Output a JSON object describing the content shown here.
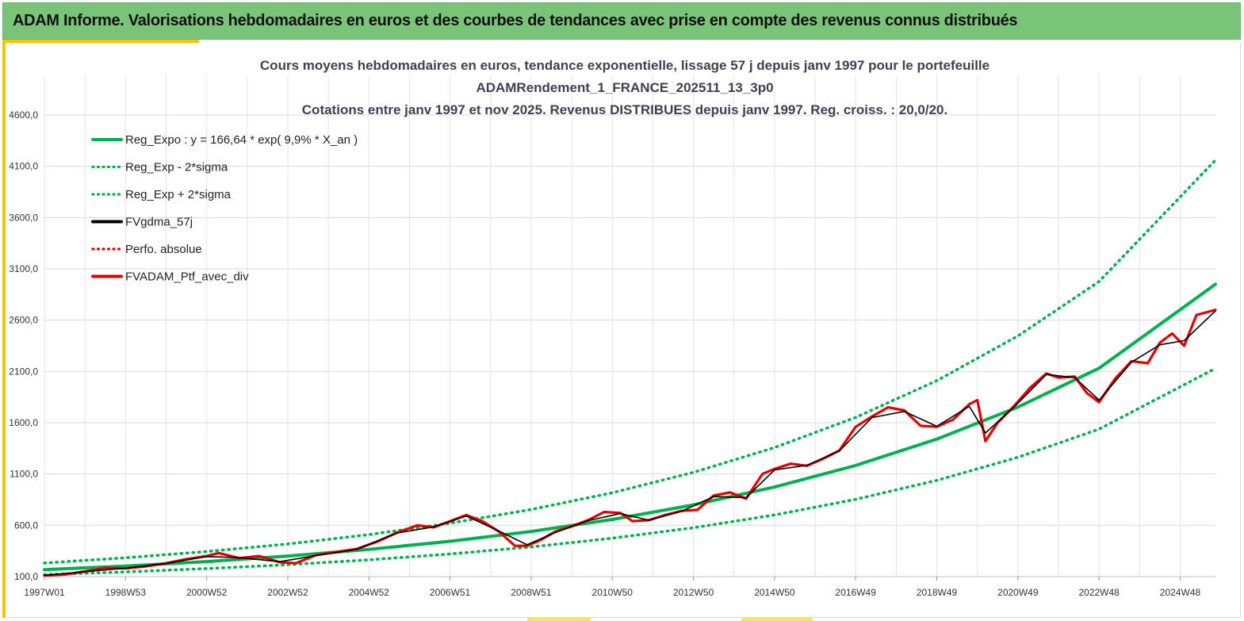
{
  "header": {
    "title": "ADAM Informe. Valorisations hebdomadaires en euros et des courbes de tendances avec prise en compte des revenus connus distribués"
  },
  "colors": {
    "banner": "#7ac47a",
    "accent": "#ffc000",
    "trend": "#00b050",
    "smoothed": "#000000",
    "portfolio": "#e00000"
  },
  "chart_data": {
    "type": "line",
    "title_lines": [
      "Cours moyens hebdomadaires  en euros, tendance exponentielle, lissage 57 j depuis janv 1997 pour le portefeuille",
      "ADAMRendement_1_FRANCE_202511_13_3p0",
      "Cotations  entre janv 1997 et nov 2025. Revenus DISTRIBUES depuis janv 1997. Reg. croiss. : 20,0/20."
    ],
    "x_tick_labels": [
      "1997W01",
      "1998W53",
      "2000W52",
      "2002W52",
      "2004W52",
      "2006W51",
      "2008W51",
      "2010W50",
      "2012W50",
      "2014W50",
      "2016W49",
      "2018W49",
      "2020W49",
      "2022W48",
      "2024W48"
    ],
    "x_range_years": [
      1997.0,
      2025.87
    ],
    "y_tick_labels": [
      "100,0",
      "600,0",
      "1100,0",
      "1600,0",
      "2100,0",
      "2600,0",
      "3100,0",
      "3600,0",
      "4100,0",
      "4600,0"
    ],
    "ylim": [
      100,
      4600
    ],
    "grid": true,
    "legend_position": "top-left",
    "legend": [
      {
        "label": "Reg_Expo : y = 166,64 * exp( 9,9% *  X_an )",
        "color": "#00b050",
        "style": "solid"
      },
      {
        "label": "Reg_Exp - 2*sigma",
        "color": "#00b050",
        "style": "dotted"
      },
      {
        "label": "Reg_Exp + 2*sigma",
        "color": "#00b050",
        "style": "dotted"
      },
      {
        "label": "FVgdma_57j",
        "color": "#000000",
        "style": "solid"
      },
      {
        "label": "Perfo. absolue",
        "color": "#e00000",
        "style": "dotted"
      },
      {
        "label": "FVADAM_Ptf_avec_div",
        "color": "#e00000",
        "style": "solid"
      }
    ],
    "series": [
      {
        "name": "Reg_Expo : y = 166,64 * exp( 9,9% *  X_an )",
        "x": [
          1997.0,
          1999.0,
          2001.0,
          2003.0,
          2005.0,
          2007.0,
          2009.0,
          2011.0,
          2013.0,
          2015.0,
          2017.0,
          2019.0,
          2021.0,
          2023.0,
          2025.87
        ],
        "values": [
          167,
          203,
          246,
          300,
          365,
          444,
          540,
          657,
          799,
          973,
          1183,
          1440,
          1752,
          2131,
          2950
        ]
      },
      {
        "name": "Reg_Exp - 2*sigma",
        "x": [
          1997.0,
          1999.0,
          2001.0,
          2003.0,
          2005.0,
          2007.0,
          2009.0,
          2011.0,
          2013.0,
          2015.0,
          2017.0,
          2019.0,
          2021.0,
          2023.0,
          2025.87
        ],
        "values": [
          120,
          146,
          178,
          216,
          263,
          320,
          389,
          474,
          576,
          701,
          853,
          1038,
          1263,
          1537,
          2130
        ]
      },
      {
        "name": "Reg_Exp + 2*sigma",
        "x": [
          1997.0,
          1999.0,
          2001.0,
          2003.0,
          2005.0,
          2007.0,
          2009.0,
          2011.0,
          2013.0,
          2015.0,
          2017.0,
          2019.0,
          2021.0,
          2023.0,
          2025.87
        ],
        "values": [
          232,
          283,
          344,
          418,
          509,
          620,
          754,
          917,
          1116,
          1358,
          1652,
          2010,
          2446,
          2976,
          4160
        ]
      },
      {
        "name": "FVADAM_Ptf_avec_div",
        "x": [
          1997.0,
          1997.5,
          1998.0,
          1998.5,
          1999.0,
          1999.5,
          2000.0,
          2000.5,
          2001.0,
          2001.3,
          2001.8,
          2002.3,
          2002.8,
          2003.2,
          2003.7,
          2004.2,
          2004.7,
          2005.2,
          2005.7,
          2006.2,
          2006.6,
          2007.0,
          2007.4,
          2007.8,
          2008.2,
          2008.6,
          2008.9,
          2009.2,
          2009.6,
          2010.0,
          2010.4,
          2010.8,
          2011.2,
          2011.5,
          2011.9,
          2012.3,
          2012.7,
          2013.1,
          2013.5,
          2013.9,
          2014.3,
          2014.7,
          2015.0,
          2015.4,
          2015.8,
          2016.2,
          2016.6,
          2017.0,
          2017.4,
          2017.8,
          2018.2,
          2018.6,
          2019.0,
          2019.4,
          2019.8,
          2020.0,
          2020.2,
          2020.5,
          2020.9,
          2021.3,
          2021.7,
          2022.0,
          2022.4,
          2022.7,
          2023.0,
          2023.4,
          2023.8,
          2024.2,
          2024.5,
          2024.8,
          2025.1,
          2025.4,
          2025.87
        ],
        "values": [
          110,
          120,
          150,
          185,
          180,
          200,
          230,
          270,
          300,
          330,
          280,
          300,
          240,
          230,
          310,
          340,
          370,
          440,
          530,
          600,
          580,
          640,
          700,
          640,
          540,
          400,
          400,
          450,
          540,
          590,
          650,
          730,
          720,
          640,
          650,
          700,
          740,
          750,
          890,
          920,
          860,
          1100,
          1150,
          1200,
          1180,
          1250,
          1330,
          1560,
          1660,
          1750,
          1720,
          1570,
          1560,
          1630,
          1780,
          1820,
          1420,
          1600,
          1760,
          1940,
          2080,
          2040,
          2050,
          1890,
          1800,
          2030,
          2200,
          2180,
          2380,
          2470,
          2350,
          2650,
          2700
        ]
      },
      {
        "name": "FVgdma_57j",
        "x": [
          1997.0,
          1998.0,
          1999.0,
          2000.0,
          2001.0,
          2001.8,
          2002.8,
          2003.7,
          2004.7,
          2005.7,
          2006.6,
          2007.4,
          2008.2,
          2008.9,
          2009.6,
          2010.4,
          2011.2,
          2011.9,
          2012.7,
          2013.5,
          2014.3,
          2015.0,
          2015.8,
          2016.6,
          2017.4,
          2018.2,
          2019.0,
          2019.8,
          2020.2,
          2020.9,
          2021.7,
          2022.4,
          2023.0,
          2023.8,
          2024.5,
          2025.1,
          2025.87
        ],
        "values": [
          112,
          148,
          182,
          228,
          295,
          285,
          245,
          305,
          365,
          525,
          585,
          690,
          545,
          410,
          530,
          645,
          715,
          650,
          735,
          880,
          870,
          1140,
          1185,
          1325,
          1650,
          1710,
          1565,
          1760,
          1500,
          1750,
          2070,
          2040,
          1820,
          2190,
          2360,
          2400,
          2690
        ]
      }
    ]
  }
}
